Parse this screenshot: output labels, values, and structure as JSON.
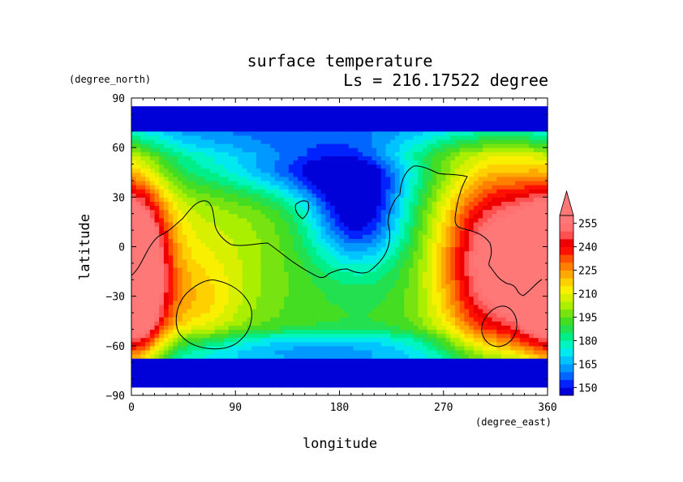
{
  "chart_data": {
    "type": "heatmap",
    "title": "surface temperature",
    "subtitle": "Ls = 216.17522 degree",
    "xlabel": "longitude",
    "ylabel": "latitude",
    "x_units": "(degree_east)",
    "y_units": "(degree_north)",
    "xlim": [
      0,
      360
    ],
    "ylim": [
      -90,
      90
    ],
    "x_ticks": [
      "0",
      "90",
      "180",
      "270",
      "360"
    ],
    "y_ticks": [
      "90",
      "60",
      "30",
      "0",
      "−30",
      "−60",
      "−90"
    ],
    "x_tick_values": [
      0,
      90,
      180,
      270,
      360
    ],
    "y_tick_values": [
      90,
      60,
      30,
      0,
      -30,
      -60,
      -90
    ],
    "colorbar": {
      "levels": [
        145,
        150,
        155,
        160,
        165,
        170,
        175,
        180,
        185,
        190,
        195,
        200,
        205,
        210,
        215,
        220,
        225,
        230,
        235,
        240,
        245,
        250,
        255,
        260
      ],
      "colors": [
        "#0000d8",
        "#0022ff",
        "#0066ff",
        "#0099ff",
        "#00c4ff",
        "#00e8f0",
        "#00f5c0",
        "#00ee88",
        "#22e050",
        "#44dd22",
        "#77e411",
        "#aaee00",
        "#d8f000",
        "#f8f000",
        "#ffd000",
        "#ffa800",
        "#ff8000",
        "#ff5000",
        "#ff1000",
        "#ee0000",
        "#ff5050",
        "#ff7070",
        "#ff7878"
      ],
      "tick_labels": [
        "255",
        "240",
        "225",
        "210",
        "195",
        "180",
        "165",
        "150"
      ],
      "tick_values": [
        255,
        240,
        225,
        210,
        195,
        180,
        165,
        150
      ],
      "extend": "max",
      "extend_color": "#ff7878"
    },
    "approx_field_features": [
      {
        "region": "north polar cap (lat 70 to 85)",
        "temperature": 148
      },
      {
        "region": "south polar cap (lat -68 to -85)",
        "temperature": 148
      },
      {
        "region": "warm region lon 270-360, lat -60 to 40",
        "temperature": 258
      },
      {
        "region": "warm region lon 0-20, lat -60 to 20",
        "temperature": 258
      },
      {
        "region": "cold region lon 150-230, lat 0 to 45",
        "temperature": 150
      }
    ]
  }
}
